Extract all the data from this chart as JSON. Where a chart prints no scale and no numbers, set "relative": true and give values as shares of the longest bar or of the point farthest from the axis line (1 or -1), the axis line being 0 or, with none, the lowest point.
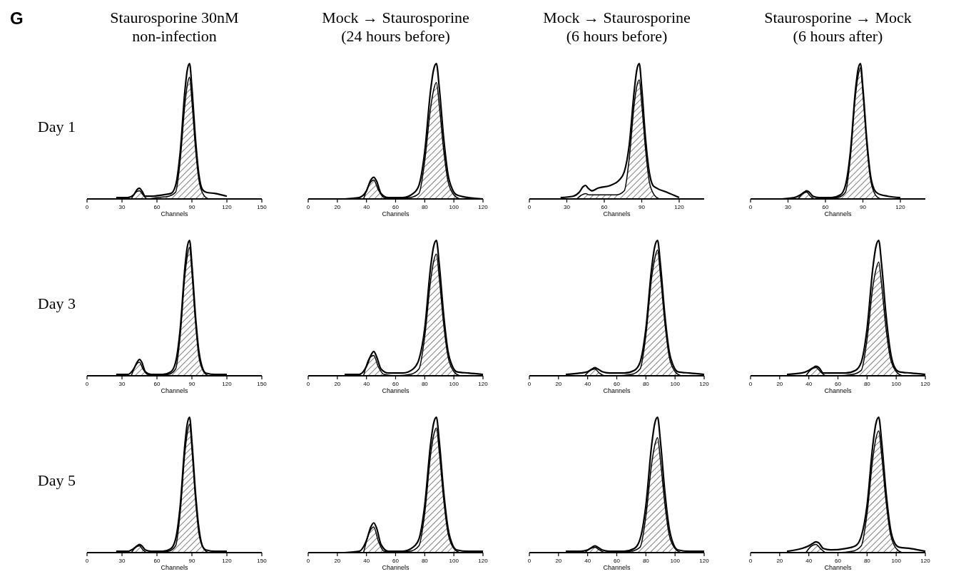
{
  "chart_data": [
    {
      "type": "line",
      "title": "Staurosporine 30nM",
      "subtitle": "non-infection",
      "ylabel": "Day 1",
      "xlabel": "Channels",
      "annotations": [
        "G"
      ],
      "relative": true,
      "xlim": [
        0,
        150
      ],
      "xticks": [
        0,
        30,
        60,
        90,
        120,
        150
      ],
      "series": [
        {
          "type": "line",
          "color": "#000000",
          "x": [
            25,
            35,
            40,
            43,
            45,
            47,
            50,
            55,
            65,
            72,
            76,
            80,
            84,
            86,
            88,
            90,
            93,
            96,
            99,
            102,
            110,
            120
          ],
          "values": [
            0.01,
            0.01,
            0.03,
            0.07,
            0.08,
            0.06,
            0.02,
            0.02,
            0.03,
            0.04,
            0.1,
            0.35,
            0.8,
            0.95,
            1,
            0.82,
            0.45,
            0.18,
            0.07,
            0.05,
            0.04,
            0.02
          ]
        },
        {
          "type": "area",
          "color": "#000000",
          "x": [
            38,
            42,
            45,
            48,
            52,
            60,
            70,
            76,
            80,
            84,
            86,
            88,
            90,
            93,
            96,
            100,
            104
          ],
          "values": [
            0,
            0.05,
            0.06,
            0.03,
            0,
            0.01,
            0.02,
            0.05,
            0.29,
            0.7,
            0.84,
            0.9,
            0.72,
            0.38,
            0.14,
            0.03,
            0
          ]
        }
      ]
    },
    {
      "type": "line",
      "title": "Mock → Staurosporine",
      "subtitle": "(24 hours before)",
      "xlabel": "Channels",
      "relative": true,
      "xlim": [
        0,
        120
      ],
      "xticks": [
        0,
        20,
        40,
        60,
        80,
        100,
        120
      ],
      "series": [
        {
          "type": "line",
          "color": "#000000",
          "x": [
            25,
            35,
            40,
            43,
            45,
            47,
            50,
            55,
            65,
            72,
            76,
            80,
            84,
            86,
            88,
            90,
            93,
            96,
            99,
            102,
            110,
            120
          ],
          "values": [
            0,
            0.01,
            0.06,
            0.14,
            0.16,
            0.13,
            0.04,
            0.01,
            0.01,
            0.04,
            0.1,
            0.35,
            0.8,
            0.95,
            1,
            0.82,
            0.45,
            0.18,
            0.07,
            0.03,
            0.01,
            0
          ]
        },
        {
          "type": "area",
          "color": "#000000",
          "x": [
            38,
            42,
            45,
            48,
            52,
            60,
            70,
            76,
            80,
            84,
            86,
            88,
            90,
            93,
            96,
            100,
            104
          ],
          "values": [
            0,
            0.11,
            0.14,
            0.07,
            0.01,
            0,
            0.01,
            0.04,
            0.28,
            0.67,
            0.8,
            0.86,
            0.69,
            0.36,
            0.13,
            0.03,
            0
          ]
        }
      ]
    },
    {
      "type": "line",
      "title": "Mock → Staurosporine",
      "subtitle": "(6 hours before)",
      "xlabel": "Channels",
      "relative": true,
      "xlim": [
        0,
        140
      ],
      "xticks": [
        0,
        30,
        60,
        90,
        120
      ],
      "series": [
        {
          "type": "line",
          "color": "#000000",
          "x": [
            25,
            35,
            40,
            43,
            45,
            47,
            50,
            55,
            65,
            72,
            76,
            80,
            84,
            86,
            88,
            90,
            93,
            96,
            99,
            102,
            110,
            120
          ],
          "values": [
            0.01,
            0.02,
            0.05,
            0.09,
            0.1,
            0.08,
            0.06,
            0.08,
            0.1,
            0.14,
            0.2,
            0.4,
            0.8,
            0.95,
            1,
            0.82,
            0.45,
            0.2,
            0.1,
            0.08,
            0.05,
            0.01
          ]
        },
        {
          "type": "area",
          "color": "#000000",
          "x": [
            38,
            42,
            45,
            48,
            52,
            60,
            70,
            76,
            80,
            84,
            86,
            88,
            90,
            93,
            96,
            100,
            104
          ],
          "values": [
            0,
            0.03,
            0.04,
            0.03,
            0.03,
            0.03,
            0.03,
            0.06,
            0.3,
            0.7,
            0.83,
            0.88,
            0.7,
            0.37,
            0.13,
            0.03,
            0
          ]
        }
      ]
    },
    {
      "type": "line",
      "title": "Staurosporine → Mock",
      "subtitle": "(6 hours after)",
      "xlabel": "Channels",
      "relative": true,
      "xlim": [
        0,
        140
      ],
      "xticks": [
        0,
        30,
        60,
        90,
        120
      ],
      "series": [
        {
          "type": "line",
          "color": "#000000",
          "x": [
            25,
            35,
            40,
            43,
            45,
            47,
            50,
            55,
            65,
            72,
            76,
            80,
            84,
            86,
            88,
            90,
            93,
            96,
            99,
            102,
            110,
            120
          ],
          "values": [
            0,
            0.01,
            0.03,
            0.05,
            0.06,
            0.05,
            0.02,
            0.01,
            0.01,
            0.03,
            0.1,
            0.35,
            0.8,
            0.95,
            1,
            0.82,
            0.45,
            0.18,
            0.07,
            0.04,
            0.02,
            0.01
          ]
        },
        {
          "type": "area",
          "color": "#000000",
          "x": [
            38,
            42,
            45,
            48,
            52,
            60,
            70,
            76,
            80,
            84,
            86,
            88,
            90,
            93,
            96,
            100,
            104
          ],
          "values": [
            0,
            0.04,
            0.05,
            0.02,
            0,
            0,
            0.01,
            0.05,
            0.31,
            0.76,
            0.9,
            0.97,
            0.78,
            0.41,
            0.15,
            0.03,
            0
          ]
        }
      ]
    },
    {
      "type": "line",
      "ylabel": "Day 3",
      "xlabel": "Channels",
      "relative": true,
      "xlim": [
        0,
        150
      ],
      "xticks": [
        0,
        30,
        60,
        90,
        120,
        150
      ],
      "series": [
        {
          "type": "line",
          "color": "#000000",
          "x": [
            25,
            35,
            40,
            43,
            45,
            47,
            50,
            55,
            65,
            72,
            76,
            80,
            84,
            86,
            88,
            90,
            93,
            96,
            99,
            102,
            110,
            120
          ],
          "values": [
            0.01,
            0.01,
            0.05,
            0.1,
            0.12,
            0.1,
            0.03,
            0.01,
            0.01,
            0.03,
            0.1,
            0.35,
            0.8,
            0.95,
            1,
            0.82,
            0.45,
            0.18,
            0.06,
            0.02,
            0.01,
            0.01
          ]
        },
        {
          "type": "area",
          "color": "#000000",
          "x": [
            38,
            42,
            45,
            48,
            52,
            60,
            70,
            76,
            80,
            84,
            86,
            88,
            90,
            93,
            96,
            100,
            104
          ],
          "values": [
            0,
            0.08,
            0.1,
            0.05,
            0.01,
            0,
            0.01,
            0.05,
            0.3,
            0.74,
            0.88,
            0.95,
            0.76,
            0.4,
            0.14,
            0.03,
            0
          ]
        }
      ]
    },
    {
      "type": "line",
      "xlabel": "Channels",
      "relative": true,
      "xlim": [
        0,
        120
      ],
      "xticks": [
        0,
        20,
        40,
        60,
        80,
        100,
        120
      ],
      "series": [
        {
          "type": "line",
          "color": "#000000",
          "x": [
            25,
            35,
            40,
            43,
            45,
            47,
            50,
            55,
            65,
            72,
            76,
            80,
            84,
            86,
            88,
            90,
            93,
            96,
            99,
            102,
            110,
            120
          ],
          "values": [
            0.01,
            0.01,
            0.07,
            0.15,
            0.18,
            0.14,
            0.05,
            0.02,
            0.02,
            0.05,
            0.12,
            0.35,
            0.8,
            0.95,
            1,
            0.82,
            0.45,
            0.18,
            0.07,
            0.03,
            0.02,
            0.01
          ]
        },
        {
          "type": "area",
          "color": "#000000",
          "x": [
            38,
            42,
            45,
            48,
            52,
            60,
            70,
            76,
            80,
            84,
            86,
            88,
            90,
            93,
            96,
            100,
            104
          ],
          "values": [
            0,
            0.13,
            0.15,
            0.07,
            0.01,
            0,
            0.01,
            0.05,
            0.29,
            0.7,
            0.84,
            0.9,
            0.72,
            0.38,
            0.14,
            0.03,
            0
          ]
        }
      ]
    },
    {
      "type": "line",
      "xlabel": "Channels",
      "relative": true,
      "xlim": [
        0,
        120
      ],
      "xticks": [
        0,
        20,
        40,
        60,
        80,
        100,
        120
      ],
      "series": [
        {
          "type": "line",
          "color": "#000000",
          "x": [
            25,
            35,
            40,
            43,
            45,
            47,
            50,
            55,
            65,
            72,
            76,
            80,
            84,
            86,
            88,
            90,
            93,
            96,
            99,
            102,
            110,
            120
          ],
          "values": [
            0.01,
            0.02,
            0.03,
            0.05,
            0.06,
            0.05,
            0.03,
            0.02,
            0.02,
            0.04,
            0.1,
            0.35,
            0.8,
            0.95,
            1,
            0.82,
            0.45,
            0.18,
            0.07,
            0.03,
            0.02,
            0.01
          ]
        },
        {
          "type": "area",
          "color": "#000000",
          "x": [
            38,
            42,
            45,
            48,
            52,
            60,
            70,
            76,
            80,
            84,
            86,
            88,
            90,
            93,
            96,
            100,
            104
          ],
          "values": [
            0,
            0.04,
            0.05,
            0.02,
            0,
            0,
            0.01,
            0.05,
            0.3,
            0.73,
            0.86,
            0.93,
            0.74,
            0.39,
            0.14,
            0.03,
            0
          ]
        }
      ]
    },
    {
      "type": "line",
      "xlabel": "Channels",
      "relative": true,
      "xlim": [
        0,
        120
      ],
      "xticks": [
        0,
        20,
        40,
        60,
        80,
        100,
        120
      ],
      "series": [
        {
          "type": "line",
          "color": "#000000",
          "x": [
            25,
            35,
            40,
            43,
            45,
            47,
            50,
            55,
            65,
            72,
            76,
            80,
            84,
            86,
            88,
            90,
            93,
            96,
            99,
            102,
            110,
            120
          ],
          "values": [
            0.01,
            0.02,
            0.04,
            0.06,
            0.07,
            0.06,
            0.02,
            0.02,
            0.02,
            0.04,
            0.1,
            0.35,
            0.8,
            0.95,
            1,
            0.82,
            0.45,
            0.18,
            0.06,
            0.03,
            0.02,
            0.01
          ]
        },
        {
          "type": "area",
          "color": "#000000",
          "x": [
            38,
            42,
            45,
            48,
            52,
            60,
            70,
            76,
            80,
            84,
            86,
            88,
            90,
            93,
            96,
            100,
            104
          ],
          "values": [
            0,
            0.05,
            0.06,
            0.03,
            0,
            0,
            0.01,
            0.04,
            0.27,
            0.66,
            0.78,
            0.84,
            0.67,
            0.35,
            0.13,
            0.03,
            0
          ]
        }
      ]
    },
    {
      "type": "line",
      "ylabel": "Day 5",
      "xlabel": "Channels",
      "relative": true,
      "xlim": [
        0,
        150
      ],
      "xticks": [
        0,
        30,
        60,
        90,
        120,
        150
      ],
      "series": [
        {
          "type": "line",
          "color": "#000000",
          "x": [
            25,
            35,
            40,
            43,
            45,
            47,
            50,
            55,
            65,
            72,
            76,
            80,
            84,
            86,
            88,
            90,
            93,
            96,
            99,
            102,
            110,
            120
          ],
          "values": [
            0.01,
            0.01,
            0.03,
            0.05,
            0.06,
            0.05,
            0.02,
            0.01,
            0.01,
            0.03,
            0.1,
            0.35,
            0.8,
            0.95,
            1,
            0.82,
            0.45,
            0.18,
            0.05,
            0.02,
            0.01,
            0.01
          ]
        },
        {
          "type": "area",
          "color": "#000000",
          "x": [
            38,
            42,
            45,
            48,
            52,
            60,
            70,
            76,
            80,
            84,
            86,
            88,
            90,
            93,
            96,
            100,
            104
          ],
          "values": [
            0,
            0.04,
            0.05,
            0.02,
            0,
            0,
            0.01,
            0.05,
            0.3,
            0.74,
            0.88,
            0.95,
            0.76,
            0.4,
            0.14,
            0.03,
            0
          ]
        }
      ]
    },
    {
      "type": "line",
      "xlabel": "Channels",
      "relative": true,
      "xlim": [
        0,
        120
      ],
      "xticks": [
        0,
        20,
        40,
        60,
        80,
        100,
        120
      ],
      "series": [
        {
          "type": "line",
          "color": "#000000",
          "x": [
            25,
            35,
            40,
            43,
            45,
            47,
            50,
            55,
            65,
            72,
            76,
            80,
            84,
            86,
            88,
            90,
            93,
            96,
            99,
            102,
            110,
            120
          ],
          "values": [
            0,
            0.01,
            0.09,
            0.19,
            0.22,
            0.18,
            0.06,
            0.01,
            0.01,
            0.04,
            0.1,
            0.35,
            0.8,
            0.95,
            1,
            0.82,
            0.45,
            0.18,
            0.06,
            0.02,
            0.01,
            0.01
          ]
        },
        {
          "type": "area",
          "color": "#000000",
          "x": [
            38,
            42,
            45,
            48,
            52,
            60,
            70,
            76,
            80,
            84,
            86,
            88,
            90,
            93,
            96,
            100,
            104
          ],
          "values": [
            0,
            0.15,
            0.19,
            0.09,
            0.01,
            0,
            0.01,
            0.05,
            0.29,
            0.72,
            0.86,
            0.92,
            0.74,
            0.39,
            0.14,
            0.03,
            0
          ]
        }
      ]
    },
    {
      "type": "line",
      "xlabel": "Channels",
      "relative": true,
      "xlim": [
        0,
        120
      ],
      "xticks": [
        0,
        20,
        40,
        60,
        80,
        100,
        120
      ],
      "series": [
        {
          "type": "line",
          "color": "#000000",
          "x": [
            25,
            35,
            40,
            43,
            45,
            47,
            50,
            55,
            65,
            72,
            76,
            80,
            84,
            86,
            88,
            90,
            93,
            96,
            99,
            102,
            110,
            120
          ],
          "values": [
            0.01,
            0.01,
            0.02,
            0.04,
            0.05,
            0.04,
            0.02,
            0.01,
            0.01,
            0.03,
            0.1,
            0.35,
            0.8,
            0.95,
            1,
            0.82,
            0.45,
            0.18,
            0.06,
            0.02,
            0.01,
            0.01
          ]
        },
        {
          "type": "area",
          "color": "#000000",
          "x": [
            38,
            42,
            45,
            48,
            52,
            60,
            70,
            76,
            80,
            84,
            86,
            88,
            90,
            93,
            96,
            100,
            104
          ],
          "values": [
            0,
            0.03,
            0.04,
            0.02,
            0,
            0,
            0.01,
            0.04,
            0.27,
            0.66,
            0.79,
            0.85,
            0.68,
            0.36,
            0.13,
            0.03,
            0
          ]
        }
      ]
    },
    {
      "type": "line",
      "xlabel": "Channels",
      "relative": true,
      "xlim": [
        0,
        120
      ],
      "xticks": [
        0,
        20,
        40,
        60,
        80,
        100,
        120
      ],
      "series": [
        {
          "type": "line",
          "color": "#000000",
          "x": [
            25,
            35,
            40,
            43,
            45,
            47,
            50,
            55,
            65,
            72,
            76,
            80,
            84,
            86,
            88,
            90,
            93,
            96,
            99,
            102,
            110,
            120
          ],
          "values": [
            0.01,
            0.03,
            0.05,
            0.07,
            0.08,
            0.07,
            0.03,
            0.02,
            0.03,
            0.05,
            0.12,
            0.35,
            0.8,
            0.95,
            1,
            0.82,
            0.45,
            0.18,
            0.07,
            0.04,
            0.03,
            0.01
          ]
        },
        {
          "type": "area",
          "color": "#000000",
          "x": [
            38,
            42,
            45,
            48,
            52,
            60,
            70,
            76,
            80,
            84,
            86,
            88,
            90,
            93,
            96,
            100,
            104
          ],
          "values": [
            0,
            0.05,
            0.06,
            0.03,
            0,
            0,
            0.01,
            0.05,
            0.29,
            0.7,
            0.84,
            0.9,
            0.72,
            0.38,
            0.14,
            0.03,
            0
          ]
        }
      ]
    }
  ]
}
